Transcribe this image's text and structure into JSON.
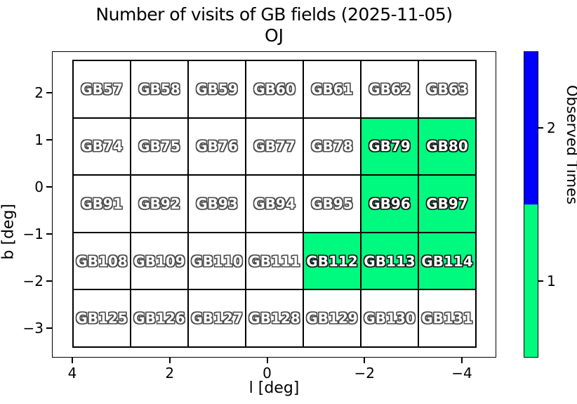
{
  "title": "Number of visits of GB fields (2025-11-05)",
  "subtitle": "OJ",
  "chart_data": {
    "type": "heatmap",
    "title": "Number of visits of GB fields (2025-11-05)",
    "subtitle": "OJ",
    "xlabel": "l [deg]",
    "ylabel": "b [deg]",
    "x_ticks": [
      "4",
      "2",
      "0",
      "−2",
      "−4"
    ],
    "y_ticks": [
      "2",
      "1",
      "0",
      "−1",
      "−2",
      "−3"
    ],
    "x_axis_reversed": true,
    "grid_rows": [
      {
        "cells": [
          {
            "label": "GB57",
            "visits": 0
          },
          {
            "label": "GB58",
            "visits": 0
          },
          {
            "label": "GB59",
            "visits": 0
          },
          {
            "label": "GB60",
            "visits": 0
          },
          {
            "label": "GB61",
            "visits": 0
          },
          {
            "label": "GB62",
            "visits": 0
          },
          {
            "label": "GB63",
            "visits": 0
          }
        ]
      },
      {
        "cells": [
          {
            "label": "GB74",
            "visits": 0
          },
          {
            "label": "GB75",
            "visits": 0
          },
          {
            "label": "GB76",
            "visits": 0
          },
          {
            "label": "GB77",
            "visits": 0
          },
          {
            "label": "GB78",
            "visits": 0
          },
          {
            "label": "GB79",
            "visits": 1
          },
          {
            "label": "GB80",
            "visits": 1
          }
        ]
      },
      {
        "cells": [
          {
            "label": "GB91",
            "visits": 0
          },
          {
            "label": "GB92",
            "visits": 0
          },
          {
            "label": "GB93",
            "visits": 0
          },
          {
            "label": "GB94",
            "visits": 0
          },
          {
            "label": "GB95",
            "visits": 0
          },
          {
            "label": "GB96",
            "visits": 1
          },
          {
            "label": "GB97",
            "visits": 1
          }
        ]
      },
      {
        "cells": [
          {
            "label": "GB108",
            "visits": 0
          },
          {
            "label": "GB109",
            "visits": 0
          },
          {
            "label": "GB110",
            "visits": 0
          },
          {
            "label": "GB111",
            "visits": 0
          },
          {
            "label": "GB112",
            "visits": 1
          },
          {
            "label": "GB113",
            "visits": 1
          },
          {
            "label": "GB114",
            "visits": 1
          }
        ]
      },
      {
        "cells": [
          {
            "label": "GB125",
            "visits": 0
          },
          {
            "label": "GB126",
            "visits": 0
          },
          {
            "label": "GB127",
            "visits": 0
          },
          {
            "label": "GB128",
            "visits": 0
          },
          {
            "label": "GB129",
            "visits": 0
          },
          {
            "label": "GB130",
            "visits": 0
          },
          {
            "label": "GB131",
            "visits": 0
          }
        ]
      }
    ],
    "colorbar": {
      "label": "Observed Times",
      "ticks": [
        "2",
        "1"
      ],
      "segments": [
        {
          "value": 2,
          "color": "#0000FF"
        },
        {
          "value": 1,
          "color": "#00FA7F"
        }
      ]
    },
    "colors": {
      "visited_1": "#00FA7F",
      "visited_2": "#0000FF",
      "unvisited": "#FFFFFF",
      "cell_border": "#000000",
      "label_outline_on_white": "#4A4A4A",
      "label_outline_on_green": "#161616"
    },
    "legend_position": "right",
    "grid_on": true
  }
}
